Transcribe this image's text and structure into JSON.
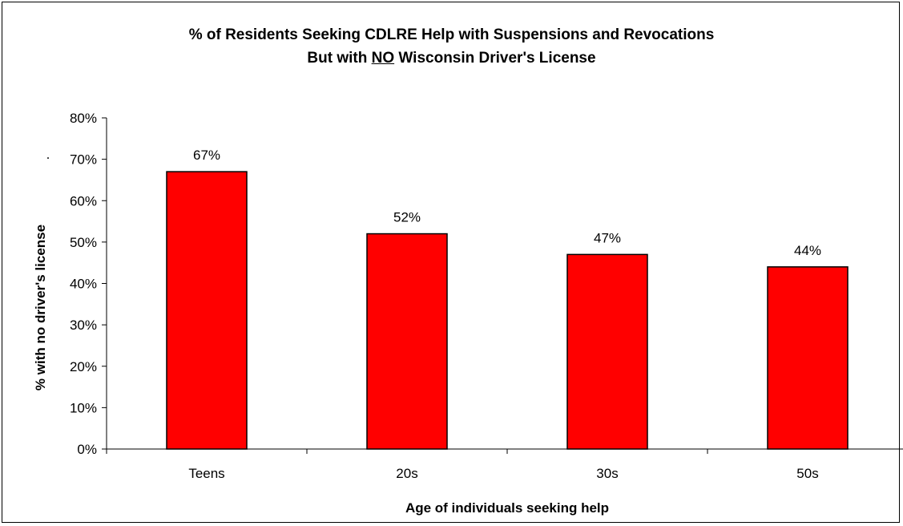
{
  "chart_data": {
    "type": "bar",
    "title_line1": "% of Residents Seeking CDLRE Help with Suspensions and Revocations",
    "title_line2_pre": "But with ",
    "title_line2_emph": "NO",
    "title_line2_post": " Wisconsin Driver's License",
    "xlabel": "Age of individuals seeking help",
    "ylabel": "% with no driver's license",
    "categories": [
      "Teens",
      "20s",
      "30s",
      "50s"
    ],
    "values": [
      67,
      52,
      47,
      44
    ],
    "data_labels": [
      "67%",
      "52%",
      "47%",
      "44%"
    ],
    "ylim": [
      0,
      80
    ],
    "yticks": [
      0,
      10,
      20,
      30,
      40,
      50,
      60,
      70,
      80
    ],
    "ytick_labels": [
      "0%",
      "10%",
      "20%",
      "30%",
      "40%",
      "50%",
      "60%",
      "70%",
      "80%"
    ],
    "stray_mark": ".",
    "bar_color": "#ff0000",
    "bar_outline": "#000000",
    "grid": false,
    "legend": "none"
  }
}
